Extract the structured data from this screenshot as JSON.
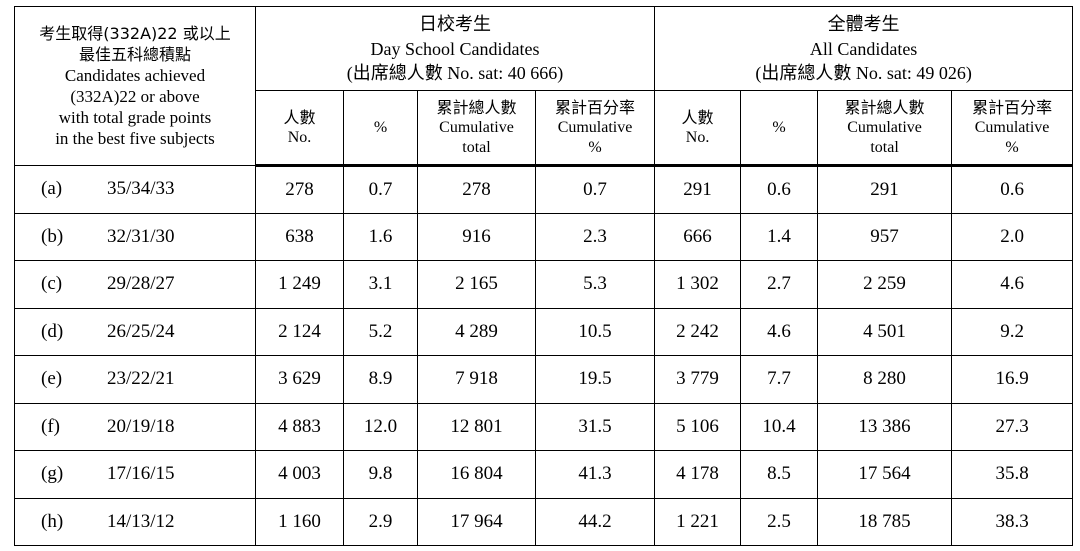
{
  "header": {
    "corner": [
      "考生取得(332A)22 或以上",
      "最佳五科總積點",
      "Candidates achieved",
      "(332A)22 or above",
      "with total grade points",
      "in the best five subjects"
    ],
    "day_school": {
      "zh": "日校考生",
      "en": "Day School Candidates",
      "sat": "(出席總人數  No. sat: 40 666)"
    },
    "all": {
      "zh": "全體考生",
      "en": "All Candidates",
      "sat": "(出席總人數  No. sat: 49 026)"
    },
    "columns": [
      {
        "zh": "人數",
        "en": [
          "No."
        ]
      },
      {
        "zh": "",
        "en": [
          "%"
        ]
      },
      {
        "zh": "累計總人數",
        "en": [
          "Cumulative",
          "total"
        ]
      },
      {
        "zh": "累計百分率",
        "en": [
          "Cumulative",
          "%"
        ]
      }
    ]
  },
  "rows": [
    {
      "letter": "(a)",
      "range": "35/34/33",
      "values": [
        "278",
        "0.7",
        "278",
        "0.7",
        "291",
        "0.6",
        "291",
        "0.6"
      ]
    },
    {
      "letter": "(b)",
      "range": "32/31/30",
      "values": [
        "638",
        "1.6",
        "916",
        "2.3",
        "666",
        "1.4",
        "957",
        "2.0"
      ]
    },
    {
      "letter": "(c)",
      "range": "29/28/27",
      "values": [
        "1 249",
        "3.1",
        "2 165",
        "5.3",
        "1 302",
        "2.7",
        "2 259",
        "4.6"
      ]
    },
    {
      "letter": "(d)",
      "range": "26/25/24",
      "values": [
        "2 124",
        "5.2",
        "4 289",
        "10.5",
        "2 242",
        "4.6",
        "4 501",
        "9.2"
      ]
    },
    {
      "letter": "(e)",
      "range": "23/22/21",
      "values": [
        "3 629",
        "8.9",
        "7 918",
        "19.5",
        "3 779",
        "7.7",
        "8 280",
        "16.9"
      ]
    },
    {
      "letter": "(f)",
      "range": "20/19/18",
      "values": [
        "4 883",
        "12.0",
        "12 801",
        "31.5",
        "5 106",
        "10.4",
        "13 386",
        "27.3"
      ]
    },
    {
      "letter": "(g)",
      "range": "17/16/15",
      "values": [
        "4 003",
        "9.8",
        "16 804",
        "41.3",
        "4 178",
        "8.5",
        "17 564",
        "35.8"
      ]
    },
    {
      "letter": "(h)",
      "range": "14/13/12",
      "values": [
        "1 160",
        "2.9",
        "17 964",
        "44.2",
        "1 221",
        "2.5",
        "18 785",
        "38.3"
      ]
    }
  ]
}
